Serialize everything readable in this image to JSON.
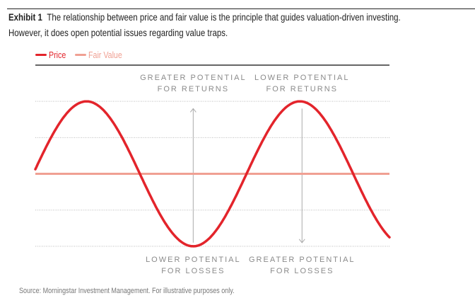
{
  "header": {
    "exhibit": "Exhibit 1",
    "caption_line1": "The relationship between price and fair value is the principle that guides valuation-driven investing.",
    "caption_line2": "However, it does open potential issues regarding value traps."
  },
  "footer": {
    "source": "Source: Morningstar Investment Management. For illustrative purposes only."
  },
  "chart_data": {
    "type": "line",
    "title": "",
    "xlabel": "",
    "ylabel": "",
    "xlim": [
      0,
      1.66
    ],
    "ylim": [
      -1.05,
      1.5
    ],
    "grid": "dotted horizontal",
    "gridlines": [
      1,
      0.5,
      -0.5,
      -1
    ],
    "legend": {
      "placement": "top-left",
      "entries": [
        "Price",
        "Fair Value"
      ]
    },
    "series": [
      {
        "name": "Price",
        "color": "#e3242b",
        "function": "sine",
        "amplitude": 1,
        "cycles_per_unit": 1,
        "phase": 0.01
      },
      {
        "name": "Fair Value",
        "color": "#f0a093",
        "function": "constant",
        "value": 0
      }
    ],
    "annotations": [
      {
        "x": 0.74,
        "direction": "up",
        "top_label": [
          "GREATER POTENTIAL",
          "FOR RETURNS"
        ],
        "bottom_label": [
          "LOWER POTENTIAL",
          "FOR LOSSES"
        ]
      },
      {
        "x": 1.25,
        "direction": "down",
        "top_label": [
          "LOWER POTENTIAL",
          "FOR RETURNS"
        ],
        "bottom_label": [
          "GREATER POTENTIAL",
          "FOR LOSSES"
        ]
      }
    ]
  }
}
